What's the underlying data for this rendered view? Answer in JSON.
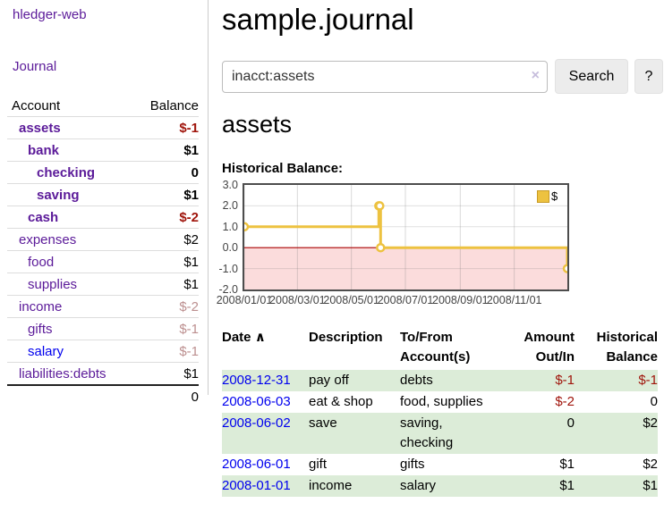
{
  "app": {
    "brand": "hledger-web",
    "nav": {
      "journal": "Journal"
    }
  },
  "colors": {
    "link_purple": "#5b1a99",
    "link_blue": "#0000ee",
    "negative_strong": "#a0150c",
    "negative_soft": "#bc8f8f",
    "register_row_green": "#dcecd8",
    "chart_line": "#edc240",
    "chart_negative_region": "#fbdcdc",
    "chart_zero_line": "#aa0000",
    "button_bg": "#ececec"
  },
  "sidebar": {
    "columns": {
      "account": "Account",
      "balance": "Balance"
    },
    "accounts": [
      {
        "name": "assets",
        "indent": 1,
        "balance": "$-1"
      },
      {
        "name": "bank",
        "indent": 2,
        "balance": "$1"
      },
      {
        "name": "checking",
        "indent": 3,
        "balance": "0"
      },
      {
        "name": "saving",
        "indent": 3,
        "balance": "$1"
      },
      {
        "name": "cash",
        "indent": 2,
        "balance": "$-2"
      },
      {
        "name": "expenses",
        "indent": 1,
        "balance": "$2"
      },
      {
        "name": "food",
        "indent": 2,
        "balance": "$1"
      },
      {
        "name": "supplies",
        "indent": 2,
        "balance": "$1"
      },
      {
        "name": "income",
        "indent": 1,
        "balance": "$-2"
      },
      {
        "name": "gifts",
        "indent": 2,
        "balance": "$-1"
      },
      {
        "name": "salary",
        "indent": 2,
        "balance": "$-1"
      },
      {
        "name": "liabilities:debts",
        "indent": 1,
        "balance": "$1"
      }
    ],
    "total": "0"
  },
  "header": {
    "title": "sample.journal"
  },
  "search": {
    "value": "inacct:assets",
    "clear_icon": "×",
    "button_label": "Search",
    "help_label": "?"
  },
  "account_page": {
    "heading": "assets"
  },
  "chart_data": {
    "type": "line",
    "step": true,
    "title": "Historical Balance:",
    "series": [
      {
        "name": "$",
        "points": [
          [
            "2008-01-01",
            1
          ],
          [
            "2008-06-01",
            2
          ],
          [
            "2008-06-02",
            2
          ],
          [
            "2008-06-03",
            0
          ],
          [
            "2008-12-31",
            -1
          ]
        ]
      }
    ],
    "xlim": [
      "2008-01-01",
      "2008-12-31"
    ],
    "ylim": [
      -2,
      3
    ],
    "x_ticks": [
      "2008/01/01",
      "2008/03/01",
      "2008/05/01",
      "2008/07/01",
      "2008/09/01",
      "2008/11/01"
    ],
    "y_ticks": [
      3,
      2,
      1,
      0,
      -1,
      -2
    ],
    "grid": true,
    "legend_position": "top-right",
    "line_color": "#edc240",
    "negative_fill": "#fbdcdc",
    "zero_line_color": "#aa0000"
  },
  "register": {
    "columns": {
      "date": "Date",
      "sort_indicator": "∧",
      "description": "Description",
      "tofrom_line1": "To/From",
      "tofrom_line2": "Account(s)",
      "amount_line1": "Amount",
      "amount_line2": "Out/In",
      "historical_line1": "Historical",
      "historical_line2": "Balance"
    },
    "rows": [
      {
        "date": "2008-12-31",
        "description": "pay off",
        "accounts": "debts",
        "amount": "$-1",
        "balance": "$-1"
      },
      {
        "date": "2008-06-03",
        "description": "eat & shop",
        "accounts": "food, supplies",
        "amount": "$-2",
        "balance": "0"
      },
      {
        "date": "2008-06-02",
        "description": "save",
        "accounts": "saving, checking",
        "amount": "0",
        "balance": "$2"
      },
      {
        "date": "2008-06-01",
        "description": "gift",
        "accounts": "gifts",
        "amount": "$1",
        "balance": "$2"
      },
      {
        "date": "2008-01-01",
        "description": "income",
        "accounts": "salary",
        "amount": "$1",
        "balance": "$1"
      }
    ]
  }
}
